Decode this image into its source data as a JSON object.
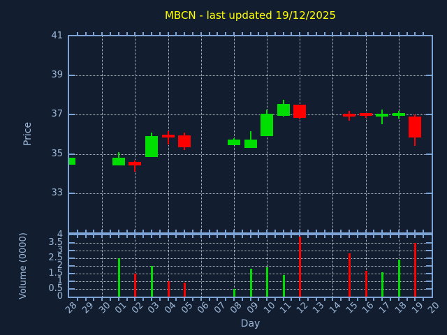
{
  "title": {
    "text": "MBCN - last updated 19/12/2025"
  },
  "price_panel": {
    "ylabel": "Price",
    "yticks": [
      41,
      39,
      37,
      35,
      33
    ],
    "ylim": [
      31,
      41
    ]
  },
  "volume_panel": {
    "ylabel": "Volume (0000)",
    "yticks": [
      4,
      3.5,
      3,
      2.5,
      2,
      1.5,
      1,
      0.5,
      0
    ],
    "ylim": [
      0,
      4
    ]
  },
  "xaxis": {
    "label": "Day",
    "ticks": [
      "28",
      "29",
      "30",
      "01",
      "02",
      "03",
      "04",
      "05",
      "06",
      "07",
      "08",
      "09",
      "10",
      "11",
      "12",
      "13",
      "14",
      "15",
      "16",
      "17",
      "18",
      "19",
      "20"
    ]
  },
  "colors": {
    "background": "#121e30",
    "axis": "#7ca3d4",
    "tick_label": "#9db7d6",
    "grid": "#bcc2ca",
    "title": "#ffff00",
    "up": "#00dd00",
    "down": "#ff0000"
  },
  "chart_data": [
    {
      "type": "candlestick",
      "title": "MBCN - last updated 19/12/2025",
      "xlabel": "Day",
      "ylabel": "Price",
      "ylim": [
        31,
        41
      ],
      "yticks": [
        33,
        35,
        37,
        39,
        41
      ],
      "grid": true,
      "days": [
        "28",
        "01",
        "02",
        "03",
        "04",
        "05",
        "08",
        "09",
        "10",
        "11",
        "12",
        "15",
        "16",
        "17",
        "18",
        "19"
      ],
      "open": [
        34.45,
        34.4,
        34.6,
        34.85,
        36.0,
        35.95,
        35.45,
        35.3,
        35.9,
        36.95,
        37.5,
        37.05,
        37.1,
        36.9,
        36.95,
        36.9
      ],
      "high": [
        34.8,
        35.1,
        34.65,
        36.1,
        36.15,
        36.1,
        35.8,
        36.15,
        37.25,
        37.75,
        37.5,
        37.2,
        37.1,
        37.25,
        37.2,
        37.0
      ],
      "low": [
        34.45,
        34.4,
        34.1,
        34.85,
        35.5,
        35.2,
        35.45,
        35.3,
        35.9,
        36.9,
        36.8,
        36.7,
        36.85,
        36.5,
        36.8,
        35.4
      ],
      "close": [
        34.8,
        34.8,
        34.4,
        35.9,
        35.85,
        35.35,
        35.75,
        35.75,
        37.05,
        37.55,
        36.85,
        36.9,
        36.95,
        37.05,
        37.1,
        35.85
      ]
    },
    {
      "type": "bar",
      "name": "volume",
      "ylabel": "Volume (0000)",
      "ylim": [
        0,
        4
      ],
      "yticks": [
        0,
        0.5,
        1,
        1.5,
        2,
        2.5,
        3,
        3.5,
        4
      ],
      "grid": true,
      "days": [
        "28",
        "01",
        "02",
        "03",
        "04",
        "05",
        "08",
        "09",
        "10",
        "11",
        "12",
        "15",
        "16",
        "17",
        "18",
        "19"
      ],
      "values": [
        0,
        2.5,
        1.5,
        2.0,
        1.0,
        0.9,
        0.5,
        1.8,
        1.9,
        1.4,
        3.9,
        2.8,
        1.7,
        1.6,
        2.4,
        3.5
      ]
    }
  ]
}
